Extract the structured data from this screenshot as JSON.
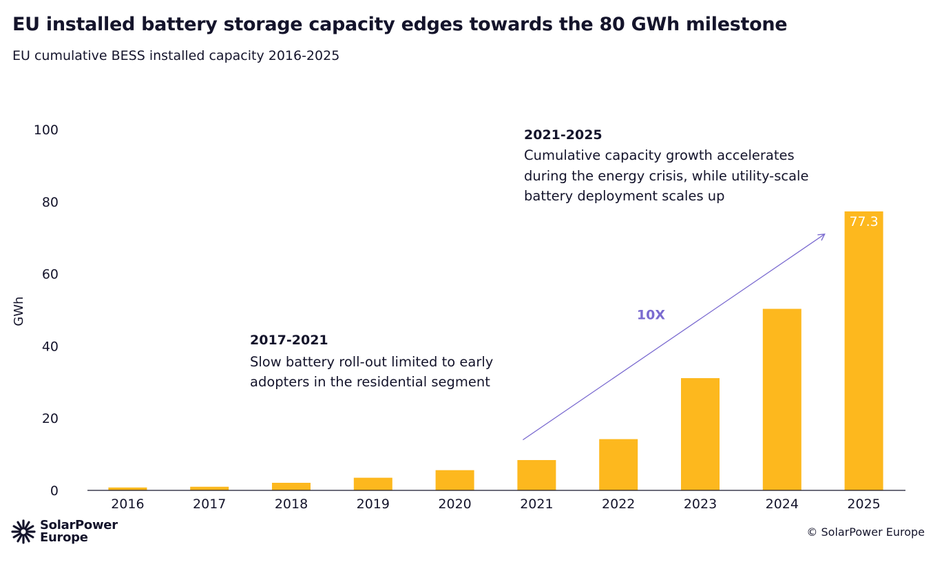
{
  "header": {
    "title": "EU installed battery storage capacity edges towards the 80 GWh milestone",
    "subtitle": "EU cumulative BESS installed capacity 2016-2025"
  },
  "chart_data": {
    "type": "bar",
    "categories": [
      "2016",
      "2017",
      "2018",
      "2019",
      "2020",
      "2021",
      "2022",
      "2023",
      "2024",
      "2025"
    ],
    "values": [
      0.8,
      1.0,
      2.1,
      3.5,
      5.6,
      8.4,
      14.2,
      31.1,
      50.3,
      77.3
    ],
    "ylabel": "GWh",
    "ylim": [
      0,
      100
    ],
    "yticks": [
      0,
      20,
      40,
      60,
      80,
      100
    ],
    "bar_color": "#fdb81e",
    "data_labels": [
      {
        "category": "2025",
        "text": "77.3"
      }
    ],
    "annotations": [
      {
        "title": "2017-2021",
        "lines": [
          "Slow battery roll-out limited to early",
          "adopters in the residential segment"
        ]
      },
      {
        "title": "2021-2025",
        "lines": [
          "Cumulative capacity growth accelerates",
          "during the energy crisis, while utility-scale",
          "battery deployment scales up"
        ]
      }
    ],
    "trend": {
      "label": "10X",
      "color": "#7b6bd0",
      "from": {
        "x": "2021",
        "y": 14
      },
      "to": {
        "x": "2025",
        "y": 71
      }
    }
  },
  "footer": {
    "logo_line1": "SolarPower",
    "logo_line2": "Europe",
    "copyright": "© SolarPower Europe"
  }
}
